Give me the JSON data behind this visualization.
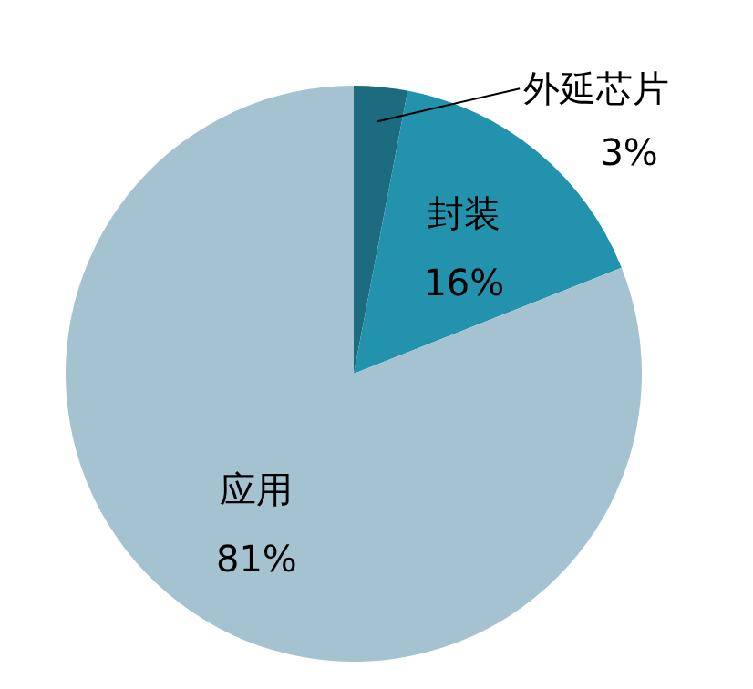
{
  "chart_data": {
    "type": "pie",
    "categories": [
      "外延芯片",
      "封装",
      "应用"
    ],
    "values": [
      3,
      16,
      81
    ],
    "value_labels": [
      "3%",
      "16%",
      "81%"
    ],
    "colors": [
      "#1d6b7f",
      "#2393ad",
      "#a4c2cf"
    ]
  }
}
